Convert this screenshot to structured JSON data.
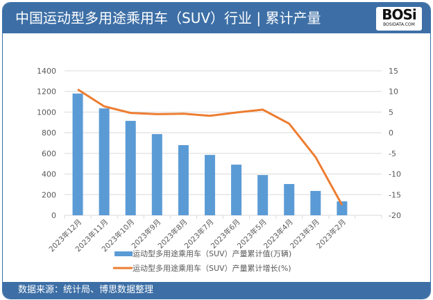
{
  "header": {
    "title": "中国运动型多用途乘用车（SUV）行业 | 累计产量",
    "logo": "BOSi",
    "logo_sub": "BOSIDATA.COM"
  },
  "footer": {
    "source": "数据来源：统计局、博思数据整理"
  },
  "colors": {
    "header_bg": "#3d6fa6",
    "bar": "#5b9bd5",
    "line": "#ed7d31"
  },
  "chart_data": {
    "type": "bar+line",
    "categories": [
      "2023年12月",
      "2023年11月",
      "2023年10月",
      "2023年9月",
      "2023年8月",
      "2023年7月",
      "2023年6月",
      "2023年5月",
      "2023年4月",
      "2023年3月",
      "2023年2月",
      ""
    ],
    "series": [
      {
        "name": "运动型多用途乘用车（SUV）产量累计值(万辆)",
        "type": "bar",
        "axis": "left",
        "values": [
          1180,
          1036,
          915,
          787,
          680,
          585,
          491,
          390,
          303,
          236,
          135,
          null
        ]
      },
      {
        "name": "运动型多用途乘用车（SUV）产量累计增长(%)",
        "type": "line",
        "axis": "right",
        "values": [
          10.5,
          6.4,
          4.8,
          4.5,
          4.6,
          4.1,
          4.9,
          5.6,
          2.2,
          -5.9,
          -17.5,
          null
        ]
      }
    ],
    "yleft": {
      "lim": [
        0,
        1400
      ],
      "ticks": [
        0,
        200,
        400,
        600,
        800,
        1000,
        1200,
        1400
      ]
    },
    "yright": {
      "lim": [
        -20,
        15
      ],
      "ticks": [
        -20,
        -15,
        -10,
        -5,
        0,
        5,
        10,
        15
      ]
    },
    "grid": true,
    "legend": "bottom"
  }
}
